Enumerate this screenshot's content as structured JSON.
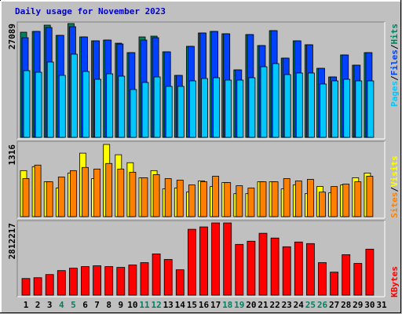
{
  "title": "Daily usage for November 2023",
  "legend_separator": "/",
  "chart_data": [
    {
      "type": "bar",
      "ylim": [
        0,
        27089
      ],
      "yticks": [
        27089
      ],
      "series": [
        {
          "name": "Hits",
          "color": "#00805c",
          "values": [
            25031,
            25218,
            26712,
            24284,
            27089,
            23910,
            22976,
            23163,
            22416,
            20174,
            23910,
            24097,
            20361,
            14757,
            21669,
            24844,
            25218,
            24658,
            16065,
            24471,
            21856,
            25405,
            18867,
            22976,
            22042,
            16438,
            14384,
            19614,
            17186,
            20174,
            null
          ]
        },
        {
          "name": "Files",
          "color": "#0040ff",
          "values": [
            23724,
            25218,
            26152,
            24284,
            26339,
            23910,
            22976,
            23163,
            22229,
            20174,
            23163,
            23724,
            20361,
            14757,
            21669,
            24844,
            25218,
            24658,
            16065,
            24471,
            21856,
            25405,
            18867,
            22976,
            22042,
            16438,
            14384,
            19614,
            17186,
            20174,
            null
          ]
        },
        {
          "name": "Pages",
          "color": "#00c8ff",
          "values": [
            15878,
            15504,
            17933,
            14757,
            19801,
            15691,
            13823,
            15131,
            14570,
            11395,
            13076,
            14384,
            12142,
            12142,
            13450,
            14010,
            14197,
            13636,
            13636,
            14197,
            16812,
            17559,
            14944,
            15318,
            15318,
            12702,
            13450,
            13823,
            13450,
            13450,
            null
          ]
        }
      ]
    },
    {
      "type": "bar",
      "ylim": [
        0,
        1316
      ],
      "yticks": [
        1316
      ],
      "series": [
        {
          "name": "Visits",
          "color": "#ffff00",
          "values": [
            839,
            911,
            636,
            521,
            795,
            1157,
            694,
            1316,
            1128,
            983,
            709,
            839,
            506,
            521,
            448,
            651,
            549,
            622,
            419,
            419,
            636,
            636,
            506,
            578,
            419,
            549,
            434,
            578,
            709,
            795,
            null
          ]
        },
        {
          "name": "Sites",
          "color": "#ff8000",
          "values": [
            694,
            940,
            636,
            723,
            839,
            897,
            868,
            969,
            868,
            810,
            709,
            766,
            694,
            665,
            578,
            636,
            737,
            622,
            564,
            521,
            636,
            636,
            694,
            651,
            680,
            448,
            549,
            593,
            636,
            737,
            null
          ]
        }
      ]
    },
    {
      "type": "bar",
      "ylim": [
        0,
        2812217
      ],
      "yticks": [
        2812217
      ],
      "categories": [
        "1",
        "2",
        "3",
        "4",
        "5",
        "6",
        "7",
        "8",
        "9",
        "10",
        "11",
        "12",
        "13",
        "14",
        "15",
        "16",
        "17",
        "18",
        "19",
        "20",
        "21",
        "22",
        "23",
        "24",
        "25",
        "26",
        "27",
        "28",
        "29",
        "30",
        "31"
      ],
      "weekends": [
        3,
        4,
        10,
        11,
        17,
        18,
        24,
        25
      ],
      "weekend_color": "#00805c",
      "series": [
        {
          "name": "KBytes",
          "color": "#ff0000",
          "values": [
            648963,
            679866,
            803478,
            957993,
            1050702,
            1112508,
            1143411,
            1112508,
            1081605,
            1174314,
            1267023,
            1606956,
            1390635,
            988896,
            2564949,
            2657658,
            2812217,
            2812217,
            1977792,
            2101404,
            2410434,
            2225016,
            1885083,
            2070501,
            2008695,
            1267023,
            896187,
            1576053,
            1236120,
            1792374,
            null
          ]
        }
      ]
    }
  ]
}
